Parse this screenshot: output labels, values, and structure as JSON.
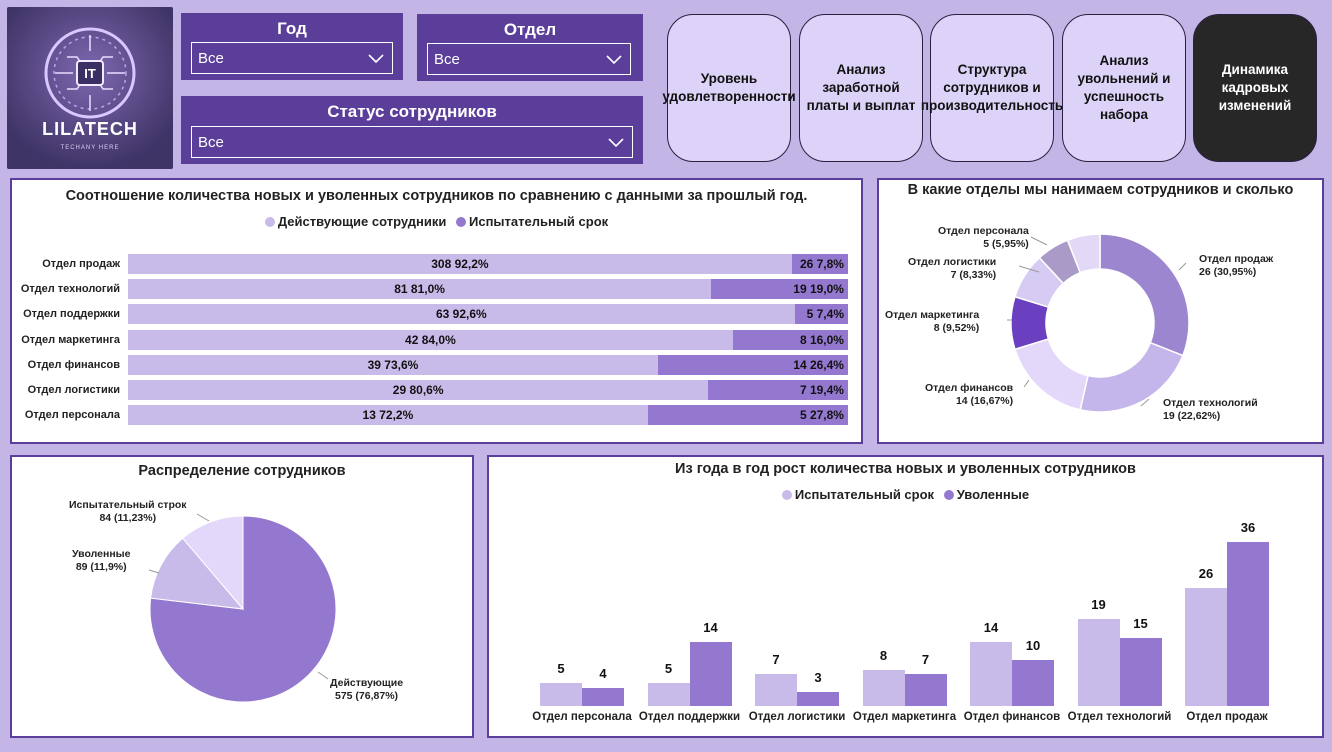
{
  "logo": {
    "brand": "LILATECH",
    "tagline": "TECHANY HERE",
    "badge": "IT"
  },
  "filters": {
    "year": {
      "label": "Год",
      "value": "Все"
    },
    "department": {
      "label": "Отдел",
      "value": "Все"
    },
    "status": {
      "label": "Статус сотрудников",
      "value": "Все"
    }
  },
  "nav": [
    {
      "label": "Уровень удовлетворенности"
    },
    {
      "label": "Анализ заработной платы и выплат"
    },
    {
      "label": "Структура сотрудников и производительность"
    },
    {
      "label": "Анализ увольнений и успешность набора"
    },
    {
      "label": "Динамика кадровых изменений"
    }
  ],
  "colors": {
    "light": "#c9bbe9",
    "medium": "#9478d0",
    "dark": "#6a3fc0",
    "lighter": "#e3d8f9",
    "grey": "#a99ac8"
  },
  "chart_data": [
    {
      "type": "bar",
      "orientation": "horizontal-stacked-100",
      "title": "Соотношение количества новых и уволенных сотрудников по сравнению с данными за прошлый год.",
      "legend": [
        "Действующие сотрудники",
        "Испытательный срок"
      ],
      "categories": [
        "Отдел продаж",
        "Отдел технологий",
        "Отдел поддержки",
        "Отдел маркетинга",
        "Отдел финансов",
        "Отдел логистики",
        "Отдел персонала"
      ],
      "series": [
        {
          "name": "Действующие сотрудники",
          "values": [
            308,
            81,
            63,
            42,
            39,
            29,
            13
          ],
          "labels": [
            "308 92,2%",
            "81 81,0%",
            "63 92,6%",
            "42 84,0%",
            "39 73,6%",
            "29 80,6%",
            "13 72,2%"
          ],
          "share": [
            92.2,
            81.0,
            92.6,
            84.0,
            73.6,
            80.6,
            72.2
          ]
        },
        {
          "name": "Испытательный срок",
          "values": [
            26,
            19,
            5,
            8,
            14,
            7,
            5
          ],
          "labels": [
            "26 7,8%",
            "19 19,0%",
            "5 7,4%",
            "8 16,0%",
            "14 26,4%",
            "7 19,4%",
            "5 27,8%"
          ],
          "share": [
            7.8,
            19.0,
            7.4,
            16.0,
            26.4,
            19.4,
            27.8
          ]
        }
      ]
    },
    {
      "type": "pie",
      "variant": "donut",
      "title": "В какие отделы мы нанимаем сотрудников и сколько",
      "slices": [
        {
          "name": "Отдел продаж",
          "value": 26,
          "label": "26 (30,95%)",
          "color": "#9b86cf"
        },
        {
          "name": "Отдел технологий",
          "value": 19,
          "label": "19 (22,62%)",
          "color": "#c4b5ea"
        },
        {
          "name": "Отдел финансов",
          "value": 14,
          "label": "14 (16,67%)",
          "color": "#e3d8f9"
        },
        {
          "name": "Отдел маркетинга",
          "value": 8,
          "label": "8 (9,52%)",
          "color": "#6a3fc0"
        },
        {
          "name": "Отдел логистики",
          "value": 7,
          "label": "7 (8,33%)",
          "color": "#d6cbf2"
        },
        {
          "name": "Отдел персонала",
          "value": 5,
          "label": "5 (5,95%)",
          "color": "#a99ac8"
        },
        {
          "name": "",
          "value": 5,
          "label": "",
          "color": "#e2d9f7"
        }
      ]
    },
    {
      "type": "pie",
      "title": "Распределение сотрудников",
      "slices": [
        {
          "name": "Действующие",
          "value": 575,
          "label": "575 (76,87%)",
          "color": "#9478d0"
        },
        {
          "name": "Уволенные",
          "value": 89,
          "label": "89 (11,9%)",
          "color": "#c9bbe9"
        },
        {
          "name": "Испытательный строк",
          "value": 84,
          "label": "84 (11,23%)",
          "color": "#e3d8f9"
        }
      ]
    },
    {
      "type": "bar",
      "orientation": "vertical-grouped",
      "title": "Из года в год рост количества новых и уволенных сотрудников",
      "legend": [
        "Испытательный срок",
        "Уволенные"
      ],
      "categories": [
        "Отдел персонала",
        "Отдел поддержки",
        "Отдел логистики",
        "Отдел маркетинга",
        "Отдел финансов",
        "Отдел технологий",
        "Отдел продаж"
      ],
      "series": [
        {
          "name": "Испытательный срок",
          "values": [
            5,
            5,
            7,
            8,
            14,
            19,
            26
          ]
        },
        {
          "name": "Уволенные",
          "values": [
            4,
            14,
            3,
            7,
            10,
            15,
            36
          ]
        }
      ],
      "ylim": [
        0,
        36
      ]
    }
  ]
}
